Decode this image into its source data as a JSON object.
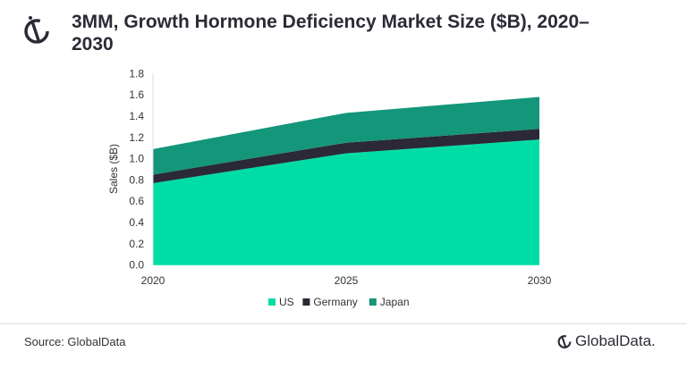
{
  "chart_data": {
    "type": "area",
    "stacked": true,
    "title": "3MM, Growth Hormone Deficiency Market Size ($B), 2020–2030",
    "xlabel": "",
    "ylabel": "Sales ($B)",
    "categories": [
      "2020",
      "2025",
      "2030"
    ],
    "ylim": [
      0,
      1.8
    ],
    "yticks": [
      "0.0",
      "0.2",
      "0.4",
      "0.6",
      "0.8",
      "1.0",
      "1.2",
      "1.4",
      "1.6",
      "1.8"
    ],
    "grid": false,
    "legend": "bottom",
    "series": [
      {
        "name": "US",
        "values": [
          0.77,
          1.05,
          1.18
        ],
        "color": "#00dca5"
      },
      {
        "name": "Germany",
        "values": [
          0.08,
          0.1,
          0.1
        ],
        "color": "#2b2838"
      },
      {
        "name": "Japan",
        "values": [
          0.24,
          0.28,
          0.3
        ],
        "color": "#14967a"
      }
    ]
  },
  "footer": {
    "source": "Source: GlobalData",
    "brand": "GlobalData."
  }
}
